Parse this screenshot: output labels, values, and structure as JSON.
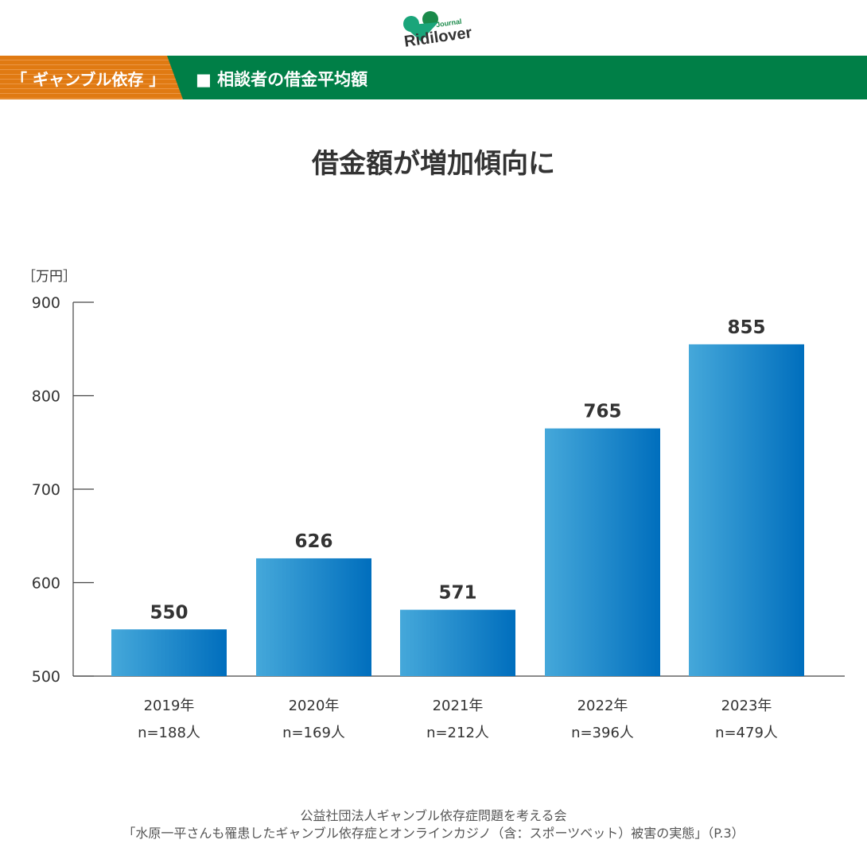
{
  "logo": {
    "name": "Ridilover",
    "sub": "Journal"
  },
  "banner": {
    "category": "「 ギャンブル依存 」",
    "subtitle": "■ 相談者の借金平均額"
  },
  "chart_data": {
    "type": "bar",
    "title": "借金額が増加傾向に",
    "ylabel": "［万円］",
    "ylim": [
      500,
      900
    ],
    "yticks": [
      500,
      600,
      700,
      800,
      900
    ],
    "categories": [
      "2019年",
      "2020年",
      "2021年",
      "2022年",
      "2023年"
    ],
    "sample_sizes": [
      "n=188人",
      "n=169人",
      "n=212人",
      "n=396人",
      "n=479人"
    ],
    "values": [
      550,
      626,
      571,
      765,
      855
    ],
    "colors": {
      "start": "#45a8da",
      "end": "#006ebd"
    }
  },
  "footer": {
    "line1": "公益社団法人ギャンブル依存症問題を考える会",
    "line2": "「水原一平さんも罹患したギャンブル依存症とオンラインカジノ（含：スポーツベット）被害の実態」（P.3）"
  }
}
